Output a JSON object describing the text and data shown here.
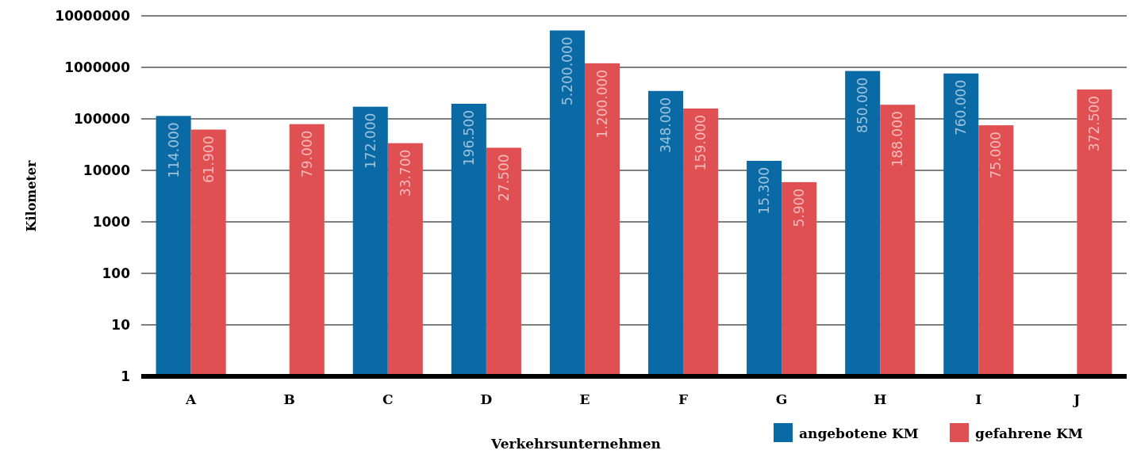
{
  "chart_data": {
    "type": "bar",
    "xlabel": "Verkehrsunternehmen",
    "ylabel": "Kilometer",
    "log": true,
    "categories": [
      "A",
      "B",
      "C",
      "D",
      "E",
      "F",
      "G",
      "H",
      "I",
      "J"
    ],
    "series": [
      {
        "name": "angebotene KM",
        "color": "#0a6aa6",
        "values": [
          114000,
          null,
          172000,
          196500,
          5200000,
          348000,
          15300,
          850000,
          760000,
          null
        ],
        "value_labels": [
          "114.000",
          null,
          "172.000",
          "196.500",
          "5.200.000",
          "348.000",
          "15.300",
          "850.000",
          "760.000",
          null
        ]
      },
      {
        "name": "gefahrene KM",
        "color": "#e05052",
        "values": [
          61900,
          79000,
          33700,
          27500,
          1200000,
          159000,
          5900,
          188000,
          75000,
          372500
        ],
        "value_labels": [
          "61.900",
          "79.000",
          "33.700",
          "27.500",
          "1.200.000",
          "159.000",
          "5.900",
          "188.000",
          "75.000",
          "372.500"
        ]
      }
    ],
    "ylim": [
      1,
      10000000
    ],
    "yticks": [
      1,
      10,
      100,
      1000,
      10000,
      100000,
      1000000,
      10000000
    ],
    "grid": "y",
    "legend": "bottom"
  }
}
